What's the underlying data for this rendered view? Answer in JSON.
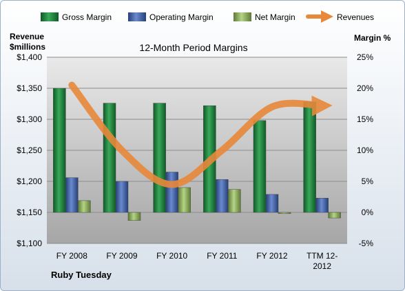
{
  "chart_data": {
    "type": "bar",
    "title": "12-Month Period Margins",
    "company": "Ruby Tuesday",
    "left_axis": {
      "title_line1": "Revenue",
      "title_line2": "$millions",
      "ylim": [
        1100,
        1400
      ],
      "ticks": [
        1100,
        1150,
        1200,
        1250,
        1300,
        1350,
        1400
      ],
      "tick_labels": [
        "$1,100",
        "$1,150",
        "$1,200",
        "$1,250",
        "$1,300",
        "$1,350",
        "$1,400"
      ]
    },
    "right_axis": {
      "title": "Margin %",
      "ylim": [
        -5,
        25
      ],
      "ticks": [
        -5,
        0,
        5,
        10,
        15,
        20,
        25
      ],
      "tick_labels": [
        "-5%",
        "0%",
        "5%",
        "10%",
        "15%",
        "20%",
        "25%"
      ]
    },
    "categories": [
      "FY 2008",
      "FY 2009",
      "FY 2010",
      "FY 2011",
      "FY 2012",
      "TTM 12-2012"
    ],
    "category_labels": [
      [
        "FY 2008"
      ],
      [
        "FY 2009"
      ],
      [
        "FY 2010"
      ],
      [
        "FY 2011"
      ],
      [
        "FY 2012"
      ],
      [
        "TTM 12-",
        "2012"
      ]
    ],
    "series": [
      {
        "name": "Gross Margin",
        "type": "bar",
        "axis": "right",
        "color": "#1e8a3c",
        "values": [
          20.0,
          17.6,
          17.6,
          17.2,
          14.8,
          17.8
        ]
      },
      {
        "name": "Operating Margin",
        "type": "bar",
        "axis": "right",
        "color": "#3f62a8",
        "values": [
          5.6,
          5.0,
          6.5,
          5.3,
          2.9,
          2.3
        ]
      },
      {
        "name": "Net Margin",
        "type": "bar",
        "axis": "right",
        "color": "#8db05c",
        "values": [
          1.9,
          -1.3,
          4.0,
          3.7,
          -0.2,
          -0.9
        ]
      },
      {
        "name": "Revenues",
        "type": "line",
        "axis": "left",
        "color": "#e8883a",
        "values": [
          1355,
          1250,
          1195,
          1250,
          1320,
          1322
        ]
      }
    ],
    "grid": true,
    "legend_position": "top"
  }
}
